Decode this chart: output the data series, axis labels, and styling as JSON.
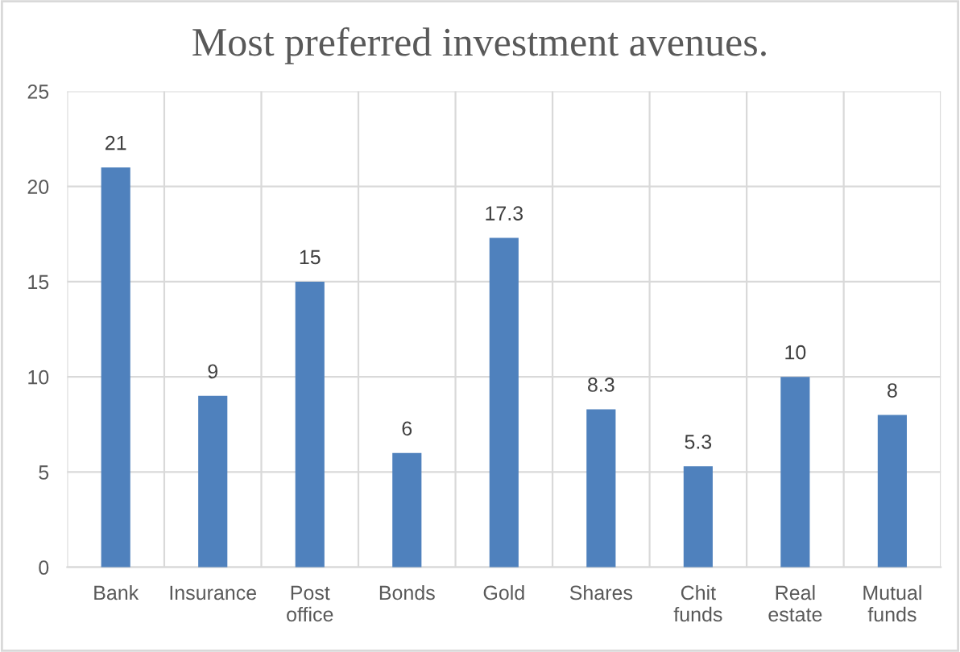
{
  "chart_data": {
    "type": "bar",
    "title": "Most preferred investment avenues.",
    "categories": [
      "Bank",
      "Insurance",
      "Post office",
      "Bonds",
      "Gold",
      "Shares",
      "Chit funds",
      "Real estate",
      "Mutual funds"
    ],
    "values": [
      21,
      9,
      15,
      6,
      17.3,
      8.3,
      5.3,
      10,
      8
    ],
    "color": "#4f81bd",
    "ylim": [
      0,
      25
    ],
    "yticks": [
      0,
      5,
      10,
      15,
      20,
      25
    ],
    "grid": true,
    "data_labels": true
  }
}
